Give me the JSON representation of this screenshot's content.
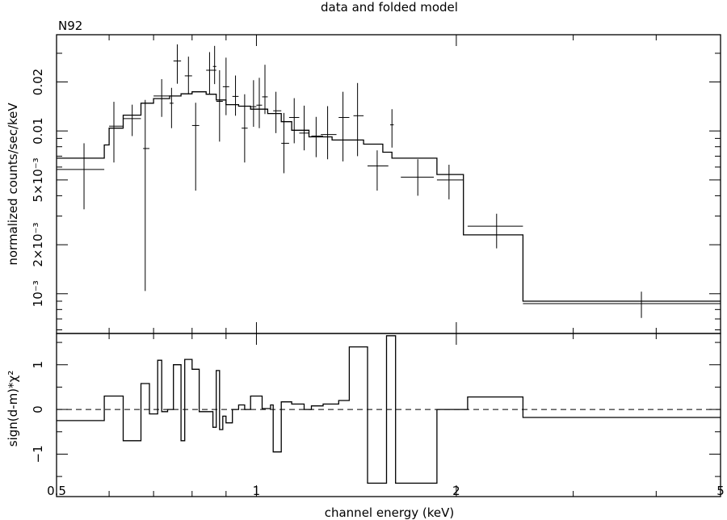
{
  "chart_data": [
    {
      "type": "line",
      "title": "data and folded model",
      "subtitle": "N92",
      "xlabel": "",
      "ylabel": "normalized counts/sec/keV",
      "xscale": "log",
      "yscale": "log",
      "xlim": [
        0.5,
        5
      ],
      "ylim": [
        0.00057,
        0.039
      ],
      "x_ticks": [
        {
          "value": 0.5,
          "label": "0.5"
        },
        {
          "value": 1,
          "label": "1"
        },
        {
          "value": 2,
          "label": "2"
        },
        {
          "value": 5,
          "label": "5"
        }
      ],
      "y_ticks": [
        {
          "value": 0.001,
          "label": "10⁻³"
        },
        {
          "value": 0.002,
          "label": "2×10⁻³"
        },
        {
          "value": 0.005,
          "label": "5×10⁻³"
        },
        {
          "value": 0.01,
          "label": "0.01"
        },
        {
          "value": 0.02,
          "label": "0.02"
        }
      ],
      "series": [
        {
          "kind": "data-with-errors",
          "points": [
            {
              "x": 0.55,
              "xlo": 0.49,
              "xhi": 0.59,
              "y": 0.0058,
              "ylo": 0.0033,
              "yhi": 0.0084
            },
            {
              "x": 0.61,
              "xlo": 0.6,
              "xhi": 0.63,
              "y": 0.0107,
              "ylo": 0.0064,
              "yhi": 0.0151
            },
            {
              "x": 0.65,
              "xlo": 0.63,
              "xhi": 0.67,
              "y": 0.0119,
              "ylo": 0.0093,
              "yhi": 0.0145
            },
            {
              "x": 0.68,
              "xlo": 0.675,
              "xhi": 0.69,
              "y": 0.0078,
              "ylo": 0.00104,
              "yhi": 0.0155
            },
            {
              "x": 0.72,
              "xlo": 0.7,
              "xhi": 0.74,
              "y": 0.0164,
              "ylo": 0.0122,
              "yhi": 0.0208
            },
            {
              "x": 0.745,
              "xlo": 0.74,
              "xhi": 0.75,
              "y": 0.0148,
              "ylo": 0.0104,
              "yhi": 0.0184
            },
            {
              "x": 0.76,
              "xlo": 0.75,
              "xhi": 0.77,
              "y": 0.0269,
              "ylo": 0.0195,
              "yhi": 0.034
            },
            {
              "x": 0.79,
              "xlo": 0.78,
              "xhi": 0.8,
              "y": 0.0218,
              "ylo": 0.0168,
              "yhi": 0.0286
            },
            {
              "x": 0.81,
              "xlo": 0.8,
              "xhi": 0.82,
              "y": 0.0108,
              "ylo": 0.0043,
              "yhi": 0.0149
            },
            {
              "x": 0.85,
              "xlo": 0.84,
              "xhi": 0.87,
              "y": 0.0236,
              "ylo": 0.0168,
              "yhi": 0.0305
            },
            {
              "x": 0.865,
              "xlo": 0.86,
              "xhi": 0.87,
              "y": 0.0249,
              "ylo": 0.0194,
              "yhi": 0.0333
            },
            {
              "x": 0.88,
              "xlo": 0.87,
              "xhi": 0.89,
              "y": 0.0152,
              "ylo": 0.0086,
              "yhi": 0.0236
            },
            {
              "x": 0.9,
              "xlo": 0.89,
              "xhi": 0.91,
              "y": 0.0187,
              "ylo": 0.0125,
              "yhi": 0.0282
            },
            {
              "x": 0.93,
              "xlo": 0.92,
              "xhi": 0.94,
              "y": 0.0163,
              "ylo": 0.0124,
              "yhi": 0.0219
            },
            {
              "x": 0.96,
              "xlo": 0.95,
              "xhi": 0.97,
              "y": 0.0104,
              "ylo": 0.0064,
              "yhi": 0.0168
            },
            {
              "x": 0.99,
              "xlo": 0.98,
              "xhi": 1.0,
              "y": 0.0141,
              "ylo": 0.0106,
              "yhi": 0.0205
            },
            {
              "x": 1.01,
              "xlo": 1.0,
              "xhi": 1.02,
              "y": 0.0144,
              "ylo": 0.0104,
              "yhi": 0.0212
            },
            {
              "x": 1.03,
              "xlo": 1.02,
              "xhi": 1.04,
              "y": 0.0162,
              "ylo": 0.0127,
              "yhi": 0.0255
            },
            {
              "x": 1.07,
              "xlo": 1.06,
              "xhi": 1.09,
              "y": 0.0133,
              "ylo": 0.0097,
              "yhi": 0.0174
            },
            {
              "x": 1.1,
              "xlo": 1.09,
              "xhi": 1.12,
              "y": 0.0084,
              "ylo": 0.0055,
              "yhi": 0.0129
            },
            {
              "x": 1.14,
              "xlo": 1.12,
              "xhi": 1.16,
              "y": 0.0121,
              "ylo": 0.0084,
              "yhi": 0.0159
            },
            {
              "x": 1.18,
              "xlo": 1.16,
              "xhi": 1.2,
              "y": 0.0097,
              "ylo": 0.0076,
              "yhi": 0.0143
            },
            {
              "x": 1.23,
              "xlo": 1.21,
              "xhi": 1.26,
              "y": 0.0093,
              "ylo": 0.0069,
              "yhi": 0.0122
            },
            {
              "x": 1.28,
              "xlo": 1.25,
              "xhi": 1.32,
              "y": 0.0095,
              "ylo": 0.0067,
              "yhi": 0.0142
            },
            {
              "x": 1.35,
              "xlo": 1.33,
              "xhi": 1.38,
              "y": 0.0121,
              "ylo": 0.0065,
              "yhi": 0.0174
            },
            {
              "x": 1.42,
              "xlo": 1.4,
              "xhi": 1.45,
              "y": 0.0124,
              "ylo": 0.007,
              "yhi": 0.0197
            },
            {
              "x": 1.52,
              "xlo": 1.47,
              "xhi": 1.58,
              "y": 0.0061,
              "ylo": 0.0043,
              "yhi": 0.0076
            },
            {
              "x": 1.6,
              "xlo": 1.59,
              "xhi": 1.61,
              "y": 0.0109,
              "ylo": 0.0079,
              "yhi": 0.0136
            },
            {
              "x": 1.75,
              "xlo": 1.65,
              "xhi": 1.85,
              "y": 0.0052,
              "ylo": 0.004,
              "yhi": 0.0067
            },
            {
              "x": 1.95,
              "xlo": 1.87,
              "xhi": 2.05,
              "y": 0.005,
              "ylo": 0.0038,
              "yhi": 0.0062
            },
            {
              "x": 2.3,
              "xlo": 2.08,
              "xhi": 2.52,
              "y": 0.0026,
              "ylo": 0.0019,
              "yhi": 0.0031
            },
            {
              "x": 3.8,
              "xlo": 2.52,
              "xhi": 5.0,
              "y": 0.00087,
              "ylo": 0.00071,
              "yhi": 0.00103
            }
          ]
        },
        {
          "kind": "folded-model-step",
          "edges": [
            0.49,
            0.59,
            0.6,
            0.63,
            0.67,
            0.7,
            0.74,
            0.77,
            0.8,
            0.84,
            0.87,
            0.9,
            0.94,
            0.98,
            1.04,
            1.09,
            1.13,
            1.2,
            1.3,
            1.45,
            1.55,
            1.6,
            1.87,
            2.05,
            2.52,
            5.0
          ],
          "values": [
            0.0068,
            0.0082,
            0.0104,
            0.0125,
            0.0148,
            0.0158,
            0.0164,
            0.0169,
            0.0174,
            0.0168,
            0.0155,
            0.0145,
            0.0142,
            0.0136,
            0.0128,
            0.0114,
            0.0101,
            0.0092,
            0.0088,
            0.0083,
            0.0074,
            0.0068,
            0.0054,
            0.0023,
            0.0009
          ]
        }
      ]
    },
    {
      "type": "line",
      "xlabel": "channel energy (keV)",
      "ylabel": "sign(d-m)*χ²",
      "xscale": "log",
      "xlim": [
        0.5,
        5
      ],
      "ylim": [
        -1.95,
        1.7
      ],
      "x_ticks": [
        {
          "value": 0.5,
          "label": "0.5"
        },
        {
          "value": 1,
          "label": "1"
        },
        {
          "value": 2,
          "label": "2"
        },
        {
          "value": 5,
          "label": "5"
        }
      ],
      "y_ticks": [
        {
          "value": -1,
          "label": "−1"
        },
        {
          "value": 0,
          "label": "0"
        },
        {
          "value": 1,
          "label": "1"
        }
      ],
      "zero_line": "dashed",
      "series": [
        {
          "kind": "residual-step",
          "edges": [
            0.49,
            0.59,
            0.63,
            0.67,
            0.69,
            0.71,
            0.72,
            0.735,
            0.75,
            0.77,
            0.78,
            0.8,
            0.82,
            0.84,
            0.86,
            0.87,
            0.88,
            0.89,
            0.9,
            0.92,
            0.94,
            0.96,
            0.98,
            1.02,
            1.05,
            1.06,
            1.09,
            1.13,
            1.18,
            1.21,
            1.26,
            1.33,
            1.38,
            1.47,
            1.57,
            1.62,
            1.87,
            2.08,
            2.52,
            5.0
          ],
          "values": [
            -0.25,
            0.3,
            -0.7,
            0.58,
            -0.1,
            1.1,
            -0.05,
            0.0,
            1.0,
            -0.7,
            1.12,
            0.9,
            -0.05,
            -0.05,
            -0.4,
            0.87,
            -0.45,
            -0.15,
            -0.3,
            0.0,
            0.1,
            0.0,
            0.3,
            0.02,
            0.1,
            -0.95,
            0.17,
            0.12,
            0.0,
            0.08,
            0.12,
            0.2,
            1.4,
            -1.65,
            1.65,
            -1.65,
            0.0,
            0.28,
            -0.18
          ]
        }
      ]
    }
  ]
}
